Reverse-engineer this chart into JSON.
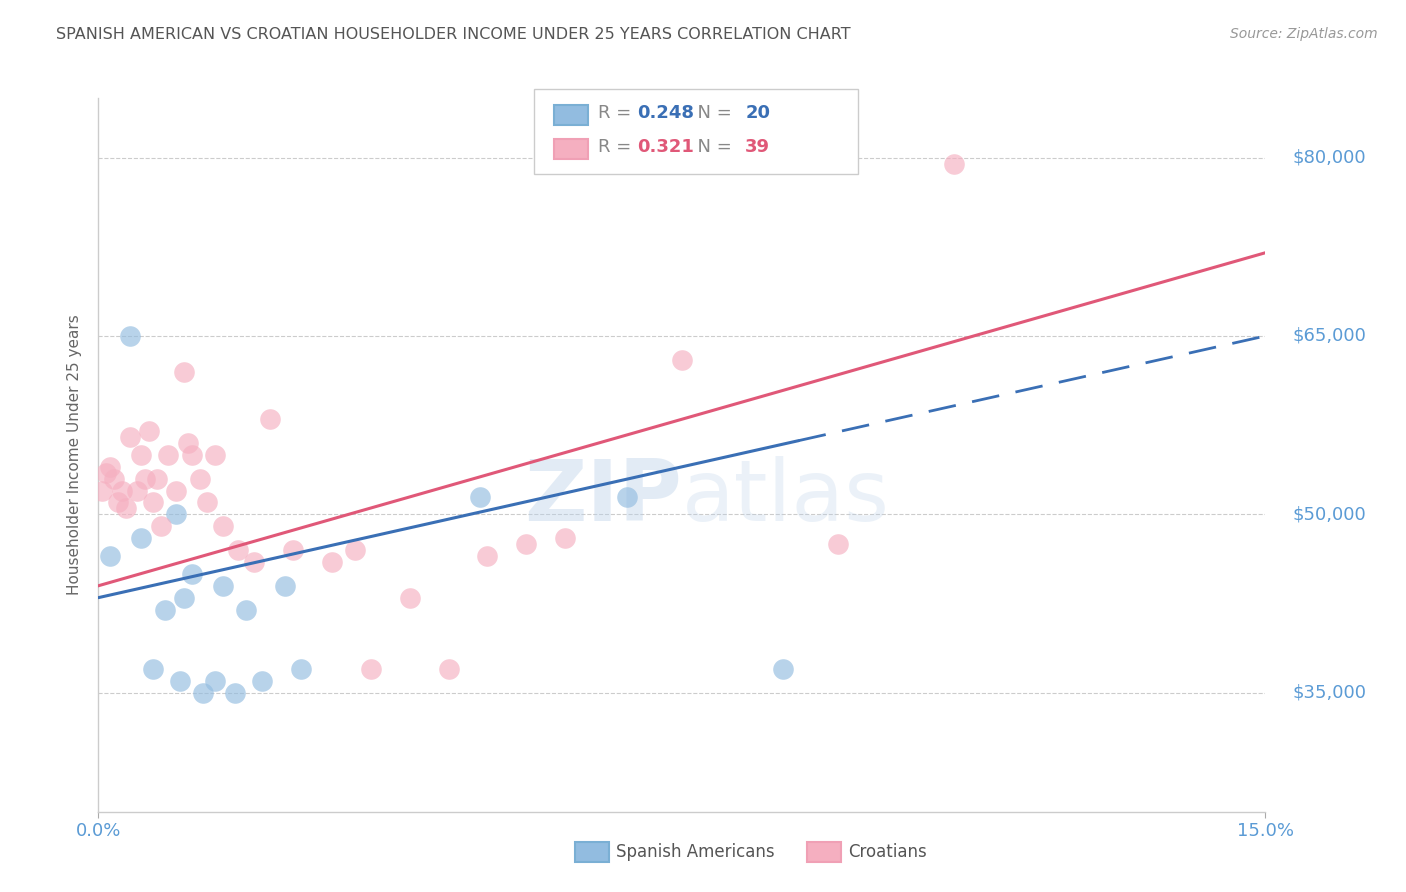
{
  "title": "SPANISH AMERICAN VS CROATIAN HOUSEHOLDER INCOME UNDER 25 YEARS CORRELATION CHART",
  "source": "Source: ZipAtlas.com",
  "ylabel": "Householder Income Under 25 years",
  "yticks": [
    35000,
    50000,
    65000,
    80000
  ],
  "ytick_labels": [
    "$35,000",
    "$50,000",
    "$65,000",
    "$80,000"
  ],
  "xmin": 0.0,
  "xmax": 15.0,
  "ymin": 25000,
  "ymax": 85000,
  "legend_blue_r": "0.248",
  "legend_blue_n": "20",
  "legend_pink_r": "0.321",
  "legend_pink_n": "39",
  "watermark_zip": "ZIP",
  "watermark_atlas": "atlas",
  "blue_color": "#92bce0",
  "pink_color": "#f5afc0",
  "blue_line_color": "#3a6fb5",
  "pink_line_color": "#e05878",
  "axis_label_color": "#5b9bd5",
  "title_color": "#555555",
  "spanish_x": [
    0.15,
    0.4,
    0.55,
    0.7,
    0.85,
    1.0,
    1.05,
    1.1,
    1.2,
    1.35,
    1.5,
    1.6,
    1.75,
    1.9,
    2.1,
    2.4,
    2.6,
    4.9,
    6.8,
    8.8
  ],
  "spanish_y": [
    46500,
    65000,
    48000,
    37000,
    42000,
    50000,
    36000,
    43000,
    45000,
    35000,
    36000,
    44000,
    35000,
    42000,
    36000,
    44000,
    37000,
    51500,
    51500,
    37000
  ],
  "croatian_x": [
    0.05,
    0.1,
    0.15,
    0.2,
    0.25,
    0.3,
    0.35,
    0.4,
    0.5,
    0.55,
    0.6,
    0.65,
    0.7,
    0.75,
    0.8,
    0.9,
    1.0,
    1.1,
    1.15,
    1.2,
    1.3,
    1.4,
    1.5,
    1.6,
    1.8,
    2.0,
    2.2,
    2.5,
    3.0,
    3.3,
    3.5,
    4.0,
    4.5,
    5.0,
    5.5,
    6.0,
    7.5,
    9.5,
    11.0
  ],
  "croatian_y": [
    52000,
    53500,
    54000,
    53000,
    51000,
    52000,
    50500,
    56500,
    52000,
    55000,
    53000,
    57000,
    51000,
    53000,
    49000,
    55000,
    52000,
    62000,
    56000,
    55000,
    53000,
    51000,
    55000,
    49000,
    47000,
    46000,
    58000,
    47000,
    46000,
    47000,
    37000,
    43000,
    37000,
    46500,
    47500,
    48000,
    63000,
    47500,
    79500
  ],
  "grid_color": "#cccccc",
  "background_color": "#ffffff",
  "blue_dash_start": 9.0
}
